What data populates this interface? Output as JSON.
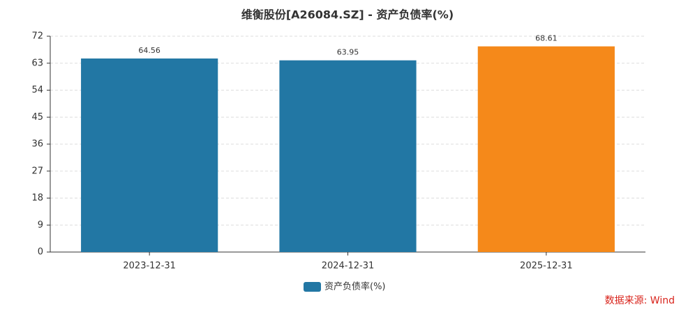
{
  "chart_data": {
    "type": "bar",
    "title": "维衡股份[A26084.SZ] - 资产负债率(%)",
    "categories": [
      "2023-12-31",
      "2024-12-31",
      "2025-12-31"
    ],
    "series": [
      {
        "name": "资产负债率(%)",
        "color": "#2277a4",
        "values": [
          64.56,
          63.95,
          68.61
        ]
      }
    ],
    "bar_colors": [
      "#2277a4",
      "#2277a4",
      "#f5891a"
    ],
    "ylim": [
      0,
      72
    ],
    "yticks": [
      0,
      9,
      18,
      27,
      36,
      45,
      54,
      63,
      72
    ],
    "grid": true,
    "legend": "bottom",
    "source": "数据来源: Wind"
  }
}
